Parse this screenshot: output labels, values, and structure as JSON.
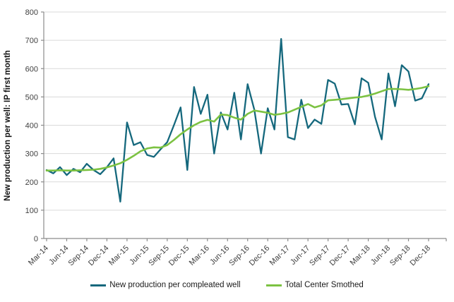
{
  "chart_data": {
    "type": "line",
    "title": "",
    "xlabel": "",
    "ylabel": "New production per well: IP first month",
    "ylim": [
      0,
      800
    ],
    "ytick_step": 100,
    "xtick_every": 3,
    "grid": "horizontal-only",
    "legend_position": "bottom",
    "background_color": "#ffffff",
    "grid_color": "#d9d9d9",
    "axis_color": "#8c8c8c",
    "x": [
      "Mar-14",
      "Apr-14",
      "May-14",
      "Jun-14",
      "Jul-14",
      "Aug-14",
      "Sep-14",
      "Oct-14",
      "Nov-14",
      "Dec-14",
      "Jan-15",
      "Feb-15",
      "Mar-15",
      "Apr-15",
      "May-15",
      "Jun-15",
      "Jul-15",
      "Aug-15",
      "Sep-15",
      "Oct-15",
      "Nov-15",
      "Dec-15",
      "Jan-16",
      "Feb-16",
      "Mar-16",
      "Apr-16",
      "May-16",
      "Jun-16",
      "Jul-16",
      "Aug-16",
      "Sep-16",
      "Oct-16",
      "Nov-16",
      "Dec-16",
      "Jan-17",
      "Feb-17",
      "Mar-17",
      "Apr-17",
      "May-17",
      "Jun-17",
      "Jul-17",
      "Aug-17",
      "Sep-17",
      "Oct-17",
      "Nov-17",
      "Dec-17",
      "Jan-18",
      "Feb-18",
      "Mar-18",
      "Apr-18",
      "May-18",
      "Jun-18",
      "Jul-18",
      "Aug-18",
      "Sep-18",
      "Oct-18",
      "Nov-18",
      "Dec-18"
    ],
    "series": [
      {
        "name": "New production per compleated well",
        "color": "#15687D",
        "width": 2.3,
        "values": [
          242,
          230,
          252,
          224,
          246,
          234,
          264,
          242,
          227,
          252,
          283,
          130,
          410,
          330,
          340,
          295,
          288,
          315,
          340,
          400,
          463,
          242,
          535,
          440,
          508,
          300,
          445,
          385,
          515,
          350,
          545,
          455,
          300,
          460,
          385,
          705,
          358,
          350,
          490,
          390,
          420,
          405,
          560,
          547,
          473,
          475,
          403,
          566,
          550,
          430,
          350,
          583,
          467,
          612,
          590,
          487,
          495,
          545
        ]
      },
      {
        "name": "Total Center Smothed",
        "color": "#7CC242",
        "width": 2.6,
        "values": [
          240,
          240,
          241,
          240,
          240,
          241,
          242,
          243,
          246,
          251,
          258,
          266,
          278,
          292,
          308,
          318,
          322,
          321,
          330,
          348,
          368,
          385,
          400,
          412,
          419,
          413,
          438,
          436,
          427,
          420,
          440,
          452,
          448,
          444,
          437,
          440,
          445,
          455,
          465,
          475,
          463,
          470,
          488,
          490,
          492,
          495,
          498,
          500,
          505,
          512,
          520,
          528,
          528,
          527,
          525,
          528,
          532,
          538
        ]
      }
    ],
    "ytick_labels": [
      "0",
      "100",
      "200",
      "300",
      "400",
      "500",
      "600",
      "700",
      "800"
    ]
  }
}
